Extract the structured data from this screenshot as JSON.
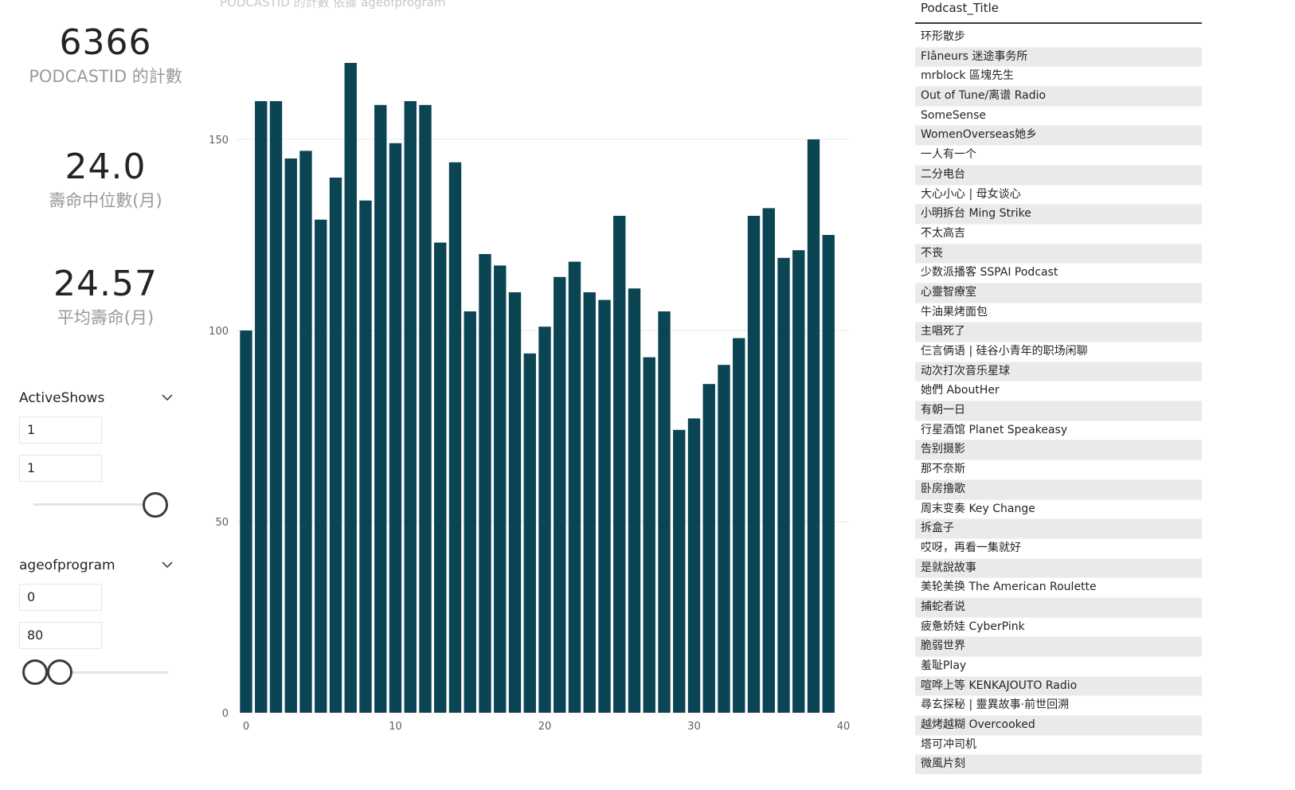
{
  "kpis": [
    {
      "value": "6366",
      "label": "PODCASTID 的計數"
    },
    {
      "value": "24.0",
      "label": "壽命中位數(月)"
    },
    {
      "value": "24.57",
      "label": "平均壽命(月)"
    }
  ],
  "slicers": [
    {
      "title": "ActiveShows",
      "min_value": "1",
      "max_value": "1"
    },
    {
      "title": "ageofprogram",
      "min_value": "0",
      "max_value": "80"
    }
  ],
  "chart_title": "PODCASTID 的計數 依據 ageofprogram",
  "chart_data": {
    "type": "bar",
    "x": [
      0,
      1,
      2,
      3,
      4,
      5,
      6,
      7,
      8,
      9,
      10,
      11,
      12,
      13,
      14,
      15,
      16,
      17,
      18,
      19,
      20,
      21,
      22,
      23,
      24,
      25,
      26,
      27,
      28,
      29,
      30,
      31,
      32,
      33,
      34,
      35,
      36,
      37,
      38,
      39
    ],
    "values": [
      100,
      160,
      160,
      145,
      147,
      129,
      140,
      170,
      134,
      159,
      149,
      160,
      159,
      123,
      144,
      105,
      120,
      117,
      110,
      94,
      101,
      114,
      118,
      110,
      108,
      130,
      111,
      93,
      105,
      74,
      77,
      86,
      91,
      98,
      130,
      132,
      119,
      121,
      150,
      125
    ],
    "color": "#0b4452",
    "xlim": [
      0,
      40
    ],
    "ylim": [
      0,
      170
    ],
    "x_ticks": [
      0,
      10,
      20,
      30,
      40
    ],
    "y_ticks": [
      0,
      50,
      100,
      150
    ],
    "grid": true
  },
  "table": {
    "header": "Podcast_Title",
    "rows": [
      "环形散步",
      "Flâneurs 迷途事务所",
      "mrblock 區塊先生",
      "Out of Tune/离谱 Radio",
      "SomeSense",
      "WomenOverseas她乡",
      "一人有一个",
      "二分电台",
      "大心小心 | 母女谈心",
      "小明拆台 Ming Strike",
      "不太高吉",
      "不丧",
      "少数派播客 SSPAI Podcast",
      "心靈智療室",
      "牛油果烤面包",
      "主唱死了",
      "仨言俩语 | 硅谷小青年的职场闲聊",
      "动次打次音乐星球",
      "她們 AboutHer",
      "有朝一日",
      "行星酒馆 Planet Speakeasy",
      "告别摄影",
      "那不奈斯",
      "卧房撸歌",
      "周末变奏 Key Change",
      "拆盒子",
      "哎呀，再看一集就好",
      "是就說故事",
      "美轮美换 The American Roulette",
      "捕蛇者说",
      "疲惫娇娃 CyberPink",
      "脆弱世界",
      "羞耻Play",
      "喧哗上等 KENKAJOUTO Radio",
      "尋玄探秘 | 靈異故事·前世回溯",
      "越烤越糊 Overcooked",
      "塔可冲司机",
      "微風片刻"
    ]
  }
}
